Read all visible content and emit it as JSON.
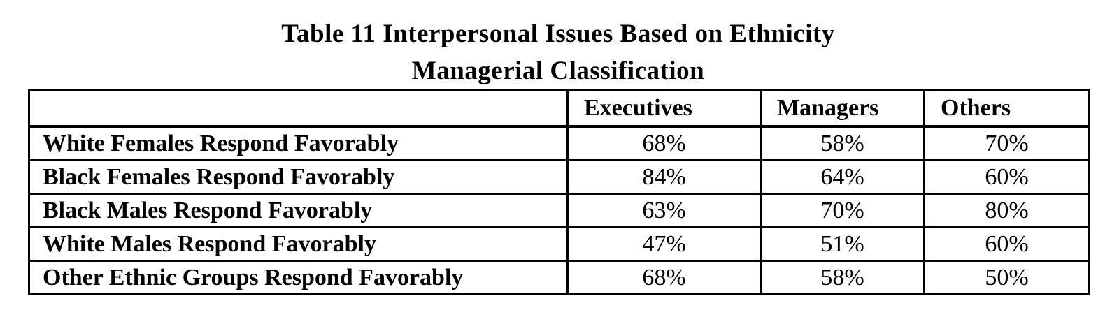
{
  "title": {
    "line1": "Table 11 Interpersonal Issues Based on Ethnicity",
    "line2": "Managerial Classification"
  },
  "table": {
    "columns": [
      "",
      "Executives",
      "Managers",
      "Others"
    ],
    "rows": [
      {
        "label": "White Females Respond Favorably",
        "values": [
          "68%",
          "58%",
          "70%"
        ]
      },
      {
        "label": "Black Females Respond Favorably",
        "values": [
          "84%",
          "64%",
          "60%"
        ]
      },
      {
        "label": "Black Males Respond Favorably",
        "values": [
          "63%",
          "70%",
          "80%"
        ]
      },
      {
        "label": "White Males Respond Favorably",
        "values": [
          "47%",
          "51%",
          "60%"
        ]
      },
      {
        "label": "Other Ethnic Groups Respond Favorably",
        "values": [
          "68%",
          "58%",
          "50%"
        ]
      }
    ]
  },
  "chart_data": {
    "type": "table",
    "title": "Table 11 Interpersonal Issues Based on Ethnicity — Managerial Classification",
    "categories": [
      "Executives",
      "Managers",
      "Others"
    ],
    "series": [
      {
        "name": "White Females Respond Favorably",
        "values": [
          68,
          58,
          70
        ]
      },
      {
        "name": "Black Females Respond Favorably",
        "values": [
          84,
          64,
          60
        ]
      },
      {
        "name": "Black Males Respond Favorably",
        "values": [
          63,
          70,
          80
        ]
      },
      {
        "name": "White Males Respond Favorably",
        "values": [
          47,
          51,
          60
        ]
      },
      {
        "name": "Other Ethnic Groups Respond Favorably",
        "values": [
          68,
          58,
          50
        ]
      }
    ],
    "unit": "%"
  },
  "colors": {
    "background": "#ffffff",
    "text": "#000000",
    "border": "#000000"
  }
}
